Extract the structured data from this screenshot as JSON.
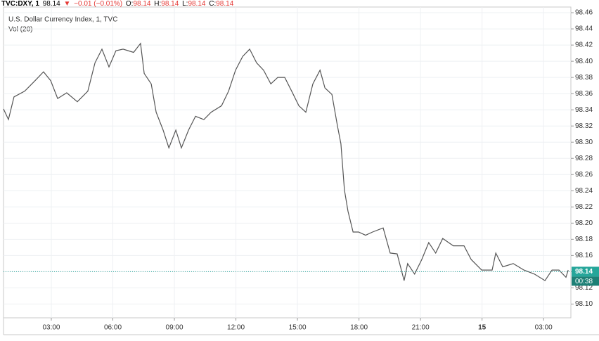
{
  "chart_data": {
    "type": "line",
    "header": {
      "symbol": "TVC:DXY, 1",
      "last": "98.14",
      "arrow": "▼",
      "change": "−0.01 (−0.01%)",
      "o_label": "O:",
      "o": "98.14",
      "h_label": "H:",
      "h": "98.14",
      "l_label": "L:",
      "l": "98.14",
      "c_label": "C:",
      "c": "98.14"
    },
    "title": "U.S. Dollar Currency Index, 1, TVC",
    "subtitle": "Vol (20)",
    "x": [
      0.67,
      0.91,
      1.18,
      1.7,
      2.21,
      2.62,
      2.97,
      3.31,
      3.75,
      4.27,
      4.78,
      5.13,
      5.47,
      5.81,
      6.15,
      6.5,
      7.01,
      7.35,
      7.53,
      7.87,
      8.11,
      8.45,
      8.73,
      9.07,
      9.34,
      9.69,
      10.03,
      10.44,
      10.79,
      11.3,
      11.64,
      11.98,
      12.33,
      12.67,
      13.01,
      13.35,
      13.7,
      14.04,
      14.38,
      14.72,
      15.07,
      15.41,
      15.75,
      16.1,
      16.34,
      16.68,
      16.95,
      17.12,
      17.29,
      17.46,
      17.71,
      17.98,
      18.32,
      18.66,
      19.18,
      19.52,
      19.86,
      20.2,
      20.37,
      20.71,
      21.06,
      21.4,
      21.74,
      22.08,
      22.6,
      23.12,
      23.47,
      23.98,
      24.49,
      24.67,
      25.01,
      25.52,
      26.04,
      26.55,
      27.07,
      27.41,
      27.75,
      28.09,
      28.2
    ],
    "values": [
      98.341,
      98.328,
      98.356,
      98.363,
      98.376,
      98.387,
      98.376,
      98.354,
      98.361,
      98.35,
      98.363,
      98.398,
      98.415,
      98.393,
      98.413,
      98.415,
      98.411,
      98.422,
      98.385,
      98.372,
      98.337,
      98.315,
      98.293,
      98.315,
      98.293,
      98.315,
      98.332,
      98.328,
      98.337,
      98.345,
      98.363,
      98.389,
      98.406,
      98.415,
      98.398,
      98.389,
      98.372,
      98.38,
      98.38,
      98.363,
      98.345,
      98.337,
      98.372,
      98.389,
      98.367,
      98.359,
      98.32,
      98.298,
      98.241,
      98.215,
      98.189,
      98.189,
      98.185,
      98.189,
      98.194,
      98.163,
      98.162,
      98.129,
      98.15,
      98.137,
      98.155,
      98.176,
      98.163,
      98.181,
      98.172,
      98.172,
      98.155,
      98.142,
      98.142,
      98.163,
      98.146,
      98.15,
      98.142,
      98.137,
      98.129,
      98.142,
      98.142,
      98.133,
      98.142
    ],
    "color": "#555555",
    "current_price": 98.14,
    "current_price_color": "#26a69a",
    "countdown": "00:38",
    "xlim": [
      0.67,
      28.33
    ],
    "xticks": [
      {
        "value": 3,
        "label": "03:00"
      },
      {
        "value": 6,
        "label": "06:00"
      },
      {
        "value": 9,
        "label": "09:00"
      },
      {
        "value": 12,
        "label": "12:00"
      },
      {
        "value": 15,
        "label": "15:00"
      },
      {
        "value": 18,
        "label": "18:00"
      },
      {
        "value": 21,
        "label": "21:00"
      },
      {
        "value": 24,
        "label": "15"
      },
      {
        "value": 27,
        "label": "03:00"
      }
    ],
    "ylim": [
      98.083,
      98.467
    ],
    "yticks": [
      {
        "value": 98.1,
        "label": "98.10"
      },
      98.12,
      98.14,
      98.16,
      98.18,
      {
        "value": 98.2,
        "label": "98.20"
      },
      98.22,
      98.24,
      98.26,
      98.28,
      {
        "value": 98.3,
        "label": "98.30"
      },
      98.32,
      98.34,
      98.36,
      98.38,
      {
        "value": 98.4,
        "label": "98.40"
      },
      98.42,
      98.44,
      98.46
    ],
    "grid": true
  }
}
